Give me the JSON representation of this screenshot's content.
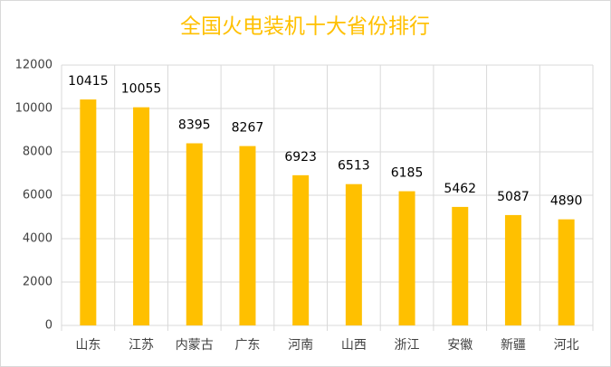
{
  "chart_data": {
    "type": "bar",
    "title": "全国火电装机十大省份排行",
    "categories": [
      "山东",
      "江苏",
      "内蒙古",
      "广东",
      "河南",
      "山西",
      "浙江",
      "安徽",
      "新疆",
      "河北"
    ],
    "values": [
      10415,
      10055,
      8395,
      8267,
      6923,
      6513,
      6185,
      5462,
      5087,
      4890
    ],
    "color": "#FFC000",
    "ylim": [
      0,
      12000
    ],
    "yticks": [
      0,
      2000,
      4000,
      6000,
      8000,
      10000,
      12000
    ],
    "grid": true
  }
}
